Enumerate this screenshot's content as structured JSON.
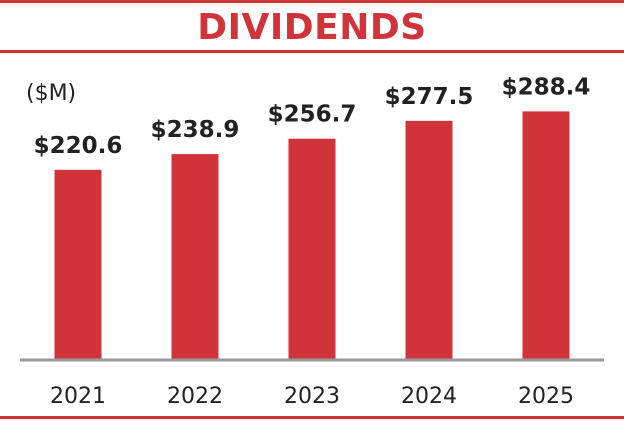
{
  "chart_data": {
    "type": "bar",
    "title": "DIVIDENDS",
    "unit_label": "($M)",
    "categories": [
      "2021",
      "2022",
      "2023",
      "2024",
      "2025"
    ],
    "values": [
      220.6,
      238.9,
      256.7,
      277.5,
      288.4
    ],
    "data_labels": [
      "$220.6",
      "$238.9",
      "$256.7",
      "$277.5",
      "$288.4"
    ],
    "ylim": [
      0,
      300
    ],
    "grid": false,
    "legend": "none"
  },
  "colors": {
    "accent": "#d0343a",
    "bar": "#d0343a",
    "baseline": "#9a9a9a",
    "label": "#222222"
  }
}
